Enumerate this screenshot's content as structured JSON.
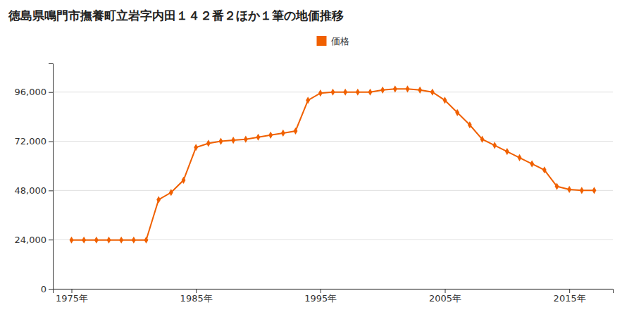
{
  "chart_data": {
    "type": "line",
    "title": "徳島県鳴門市撫養町立岩字内田１４２番２ほか１筆の地価推移",
    "x": [
      1975,
      1976,
      1977,
      1978,
      1979,
      1980,
      1981,
      1982,
      1983,
      1984,
      1985,
      1986,
      1987,
      1988,
      1989,
      1990,
      1991,
      1992,
      1993,
      1994,
      1995,
      1996,
      1997,
      1998,
      1999,
      2000,
      2001,
      2002,
      2003,
      2004,
      2005,
      2006,
      2007,
      2008,
      2009,
      2010,
      2011,
      2012,
      2013,
      2014,
      2015,
      2016,
      2017
    ],
    "series": [
      {
        "name": "価格",
        "color": "#f06000",
        "marker": "diamond",
        "line_style": "solid",
        "values": [
          23800,
          23800,
          23800,
          23800,
          23800,
          23800,
          23800,
          43500,
          47000,
          53000,
          69000,
          71000,
          72000,
          72500,
          73000,
          74000,
          75000,
          76000,
          77000,
          92000,
          95500,
          96000,
          96000,
          96000,
          96000,
          97000,
          97500,
          97500,
          97000,
          96000,
          92000,
          86000,
          80000,
          73000,
          70000,
          67000,
          64000,
          61000,
          58000,
          50000,
          48500,
          48000,
          48000
        ]
      }
    ],
    "xlim": [
      1973.5,
      2018.5
    ],
    "xticks": [
      {
        "value": 1975,
        "label": "1975年"
      },
      {
        "value": 1985,
        "label": "1985年"
      },
      {
        "value": 1995,
        "label": "1995年"
      },
      {
        "value": 2005,
        "label": "2005年"
      },
      {
        "value": 2015,
        "label": "2015年"
      }
    ],
    "ylim": [
      0,
      110000
    ],
    "yticks": [
      0,
      {
        "value": 24000,
        "label": "24,000"
      },
      {
        "value": 48000,
        "label": "48,000"
      },
      {
        "value": 72000,
        "label": "72,000"
      },
      {
        "value": 96000,
        "label": "96,000"
      }
    ],
    "grid": true,
    "legend": "top"
  }
}
